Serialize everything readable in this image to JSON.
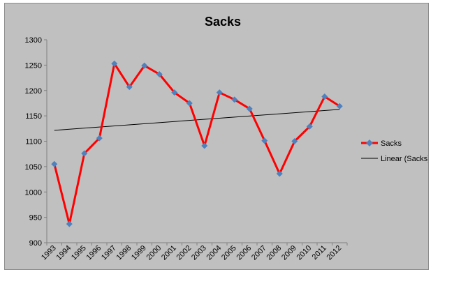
{
  "chart_data": {
    "type": "line",
    "title": "Sacks",
    "xlabel": "",
    "ylabel": "",
    "categories": [
      "1993",
      "1994",
      "1995",
      "1996",
      "1997",
      "1998",
      "1999",
      "2000",
      "2001",
      "2002",
      "2003",
      "2004",
      "2005",
      "2006",
      "2007",
      "2008",
      "2009",
      "2010",
      "2011",
      "2012"
    ],
    "series": [
      {
        "name": "Sacks",
        "color": "#ff0000",
        "marker_color": "#4f81bd",
        "values": [
          1055,
          937,
          1076,
          1106,
          1253,
          1207,
          1249,
          1232,
          1196,
          1175,
          1091,
          1196,
          1182,
          1164,
          1101,
          1036,
          1100,
          1129,
          1188,
          1169
        ]
      }
    ],
    "trendline": {
      "name": "Linear (Sacks)",
      "type": "linear",
      "color": "#000000"
    },
    "ylim": [
      900,
      1300
    ],
    "yticks": [
      900,
      950,
      1000,
      1050,
      1100,
      1150,
      1200,
      1250,
      1300
    ],
    "grid": false,
    "legend_position": "right"
  }
}
